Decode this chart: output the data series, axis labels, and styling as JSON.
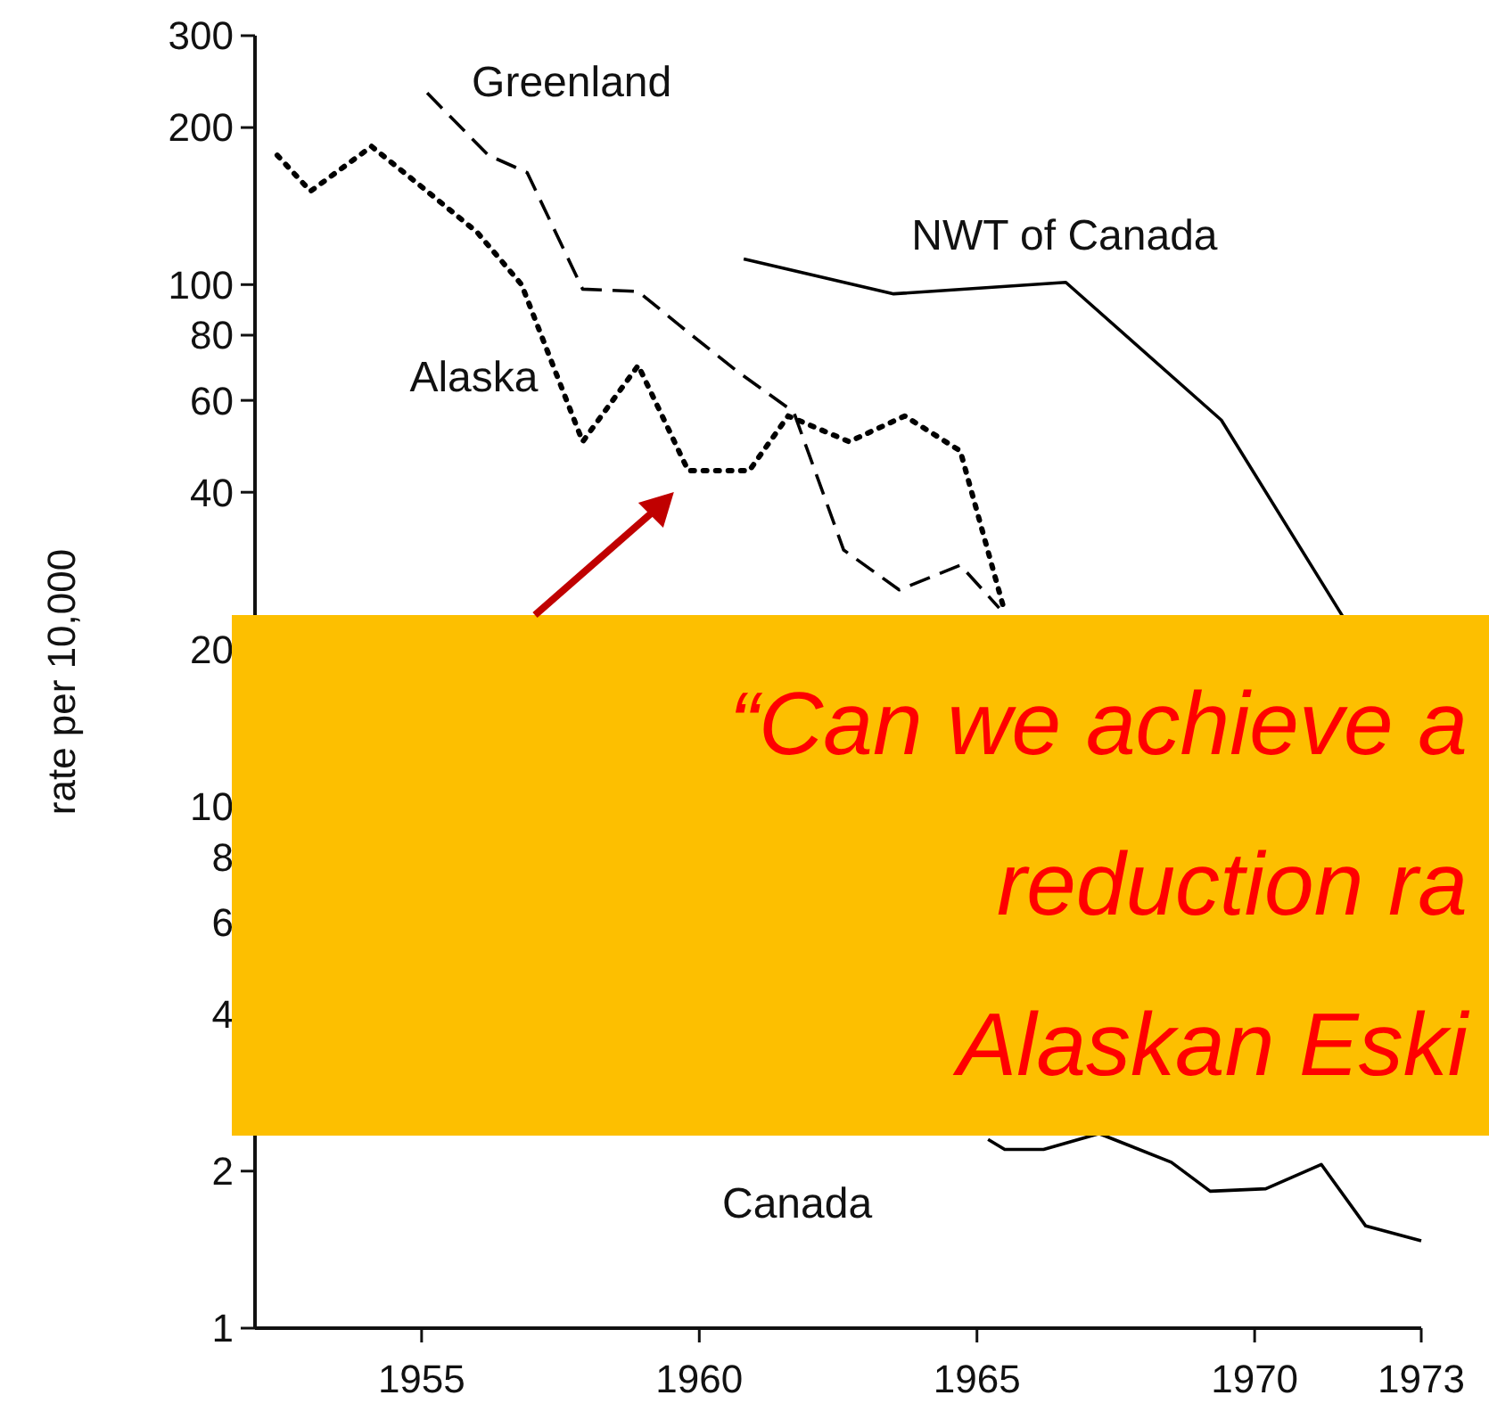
{
  "chart_data": {
    "type": "line",
    "ylabel": "rate per 10,000",
    "log": true,
    "grid": false,
    "marker": "none",
    "xlim": [
      1952,
      1973
    ],
    "xticks": [
      1955,
      1960,
      1965,
      1970,
      1973
    ],
    "ylim": [
      1,
      300
    ],
    "yticks": [
      1,
      2,
      4,
      6,
      8,
      10,
      20,
      40,
      60,
      80,
      100,
      200,
      300
    ],
    "series": [
      {
        "name": "Greenland",
        "color": "#000000",
        "line_style": "dashed",
        "x": [
          1955.1,
          1956.2,
          1956.9,
          1957.9,
          1958.9,
          1959.8,
          1960.7,
          1961.7,
          1962.6,
          1963.6,
          1964.7,
          1965.4
        ],
        "values": [
          233,
          177,
          164,
          98,
          97,
          81,
          68,
          57,
          31,
          26,
          29,
          24
        ]
      },
      {
        "name": "Alaska",
        "color": "#000000",
        "line_style": "dotted",
        "x": [
          1952.4,
          1953,
          1954.1,
          1955,
          1956,
          1956.8,
          1957.9,
          1958.9,
          1959.8,
          1960.9,
          1961.6,
          1962.7,
          1963.7,
          1964.7,
          1965.5
        ],
        "values": [
          177,
          151,
          184,
          154,
          126,
          100,
          50,
          70,
          44,
          44,
          56,
          50,
          56,
          48,
          23.6
        ]
      },
      {
        "name": "NWT of Canada",
        "color": "#000000",
        "line_style": "solid",
        "x": [
          1960.8,
          1963.5,
          1966.6,
          1969.4,
          1971.6
        ],
        "values": [
          112,
          96,
          101,
          55,
          23
        ]
      },
      {
        "name": "Canada",
        "color": "#000000",
        "line_style": "solid",
        "x": [
          1965.2,
          1965.5,
          1966.2,
          1967.2,
          1968.5,
          1969.2,
          1970.2,
          1971.2,
          1972,
          1973
        ],
        "values": [
          2.3,
          2.2,
          2.2,
          2.36,
          2.08,
          1.83,
          1.85,
          2.06,
          1.57,
          1.47
        ]
      }
    ],
    "annotations": [
      "“Can we achieve a",
      "reduction ra",
      "Alaskan Eski"
    ]
  }
}
